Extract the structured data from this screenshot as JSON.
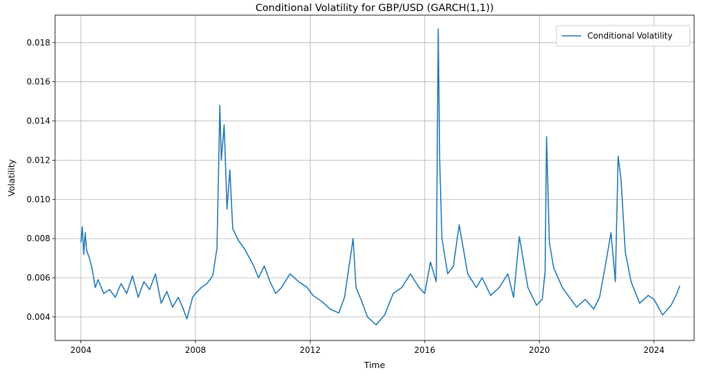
{
  "chart_data": {
    "type": "line",
    "title": "Conditional Volatility for GBP/USD (GARCH(1,1))",
    "xlabel": "Time",
    "ylabel": "Volatility",
    "xlim": [
      2003.1,
      2025.4
    ],
    "ylim": [
      0.0028,
      0.0194
    ],
    "x_ticks": [
      2004,
      2008,
      2012,
      2016,
      2020,
      2024
    ],
    "y_ticks": [
      0.004,
      0.006,
      0.008,
      0.01,
      0.012,
      0.014,
      0.016,
      0.018
    ],
    "y_tick_labels": [
      "0.004",
      "0.006",
      "0.008",
      "0.010",
      "0.012",
      "0.014",
      "0.016",
      "0.018"
    ],
    "grid": true,
    "legend_position": "top-right",
    "color": "#1f77b4",
    "series": [
      {
        "name": "Conditional Volatility",
        "x": [
          2004.0,
          2004.05,
          2004.1,
          2004.15,
          2004.2,
          2004.3,
          2004.4,
          2004.5,
          2004.6,
          2004.8,
          2005.0,
          2005.2,
          2005.4,
          2005.6,
          2005.8,
          2006.0,
          2006.2,
          2006.4,
          2006.6,
          2006.8,
          2007.0,
          2007.2,
          2007.4,
          2007.55,
          2007.7,
          2007.9,
          2008.0,
          2008.2,
          2008.4,
          2008.6,
          2008.75,
          2008.85,
          2008.9,
          2009.0,
          2009.1,
          2009.2,
          2009.3,
          2009.5,
          2009.7,
          2010.0,
          2010.2,
          2010.4,
          2010.6,
          2010.8,
          2011.0,
          2011.3,
          2011.6,
          2011.9,
          2012.1,
          2012.4,
          2012.7,
          2013.0,
          2013.2,
          2013.5,
          2013.6,
          2013.8,
          2014.0,
          2014.3,
          2014.6,
          2014.9,
          2015.2,
          2015.5,
          2015.8,
          2016.0,
          2016.2,
          2016.4,
          2016.47,
          2016.52,
          2016.6,
          2016.8,
          2017.0,
          2017.2,
          2017.5,
          2017.8,
          2018.0,
          2018.3,
          2018.6,
          2018.9,
          2019.1,
          2019.3,
          2019.6,
          2019.9,
          2020.1,
          2020.2,
          2020.25,
          2020.35,
          2020.5,
          2020.8,
          2021.0,
          2021.3,
          2021.6,
          2021.9,
          2022.1,
          2022.3,
          2022.5,
          2022.65,
          2022.75,
          2022.85,
          2023.0,
          2023.2,
          2023.5,
          2023.8,
          2024.0,
          2024.3,
          2024.6,
          2024.8,
          2024.9
        ],
        "values": [
          0.0078,
          0.0086,
          0.0072,
          0.0083,
          0.0074,
          0.007,
          0.0064,
          0.0055,
          0.0059,
          0.0052,
          0.0054,
          0.005,
          0.0057,
          0.0052,
          0.0061,
          0.005,
          0.0058,
          0.0054,
          0.0062,
          0.0047,
          0.0053,
          0.0045,
          0.005,
          0.0045,
          0.0039,
          0.005,
          0.0052,
          0.0055,
          0.0057,
          0.0061,
          0.0075,
          0.0148,
          0.012,
          0.0138,
          0.0095,
          0.0115,
          0.0085,
          0.0079,
          0.0075,
          0.0067,
          0.006,
          0.0066,
          0.0058,
          0.0052,
          0.0055,
          0.0062,
          0.0058,
          0.0055,
          0.0051,
          0.0048,
          0.0044,
          0.0042,
          0.005,
          0.008,
          0.0055,
          0.0048,
          0.004,
          0.0036,
          0.0041,
          0.0052,
          0.0055,
          0.0062,
          0.0055,
          0.0052,
          0.0068,
          0.0058,
          0.0187,
          0.012,
          0.008,
          0.0062,
          0.0066,
          0.0087,
          0.0062,
          0.0055,
          0.006,
          0.0051,
          0.0055,
          0.0062,
          0.005,
          0.0081,
          0.0055,
          0.0046,
          0.0049,
          0.0063,
          0.0132,
          0.0078,
          0.0065,
          0.0055,
          0.0051,
          0.0045,
          0.0049,
          0.0044,
          0.005,
          0.0066,
          0.0083,
          0.0058,
          0.0122,
          0.011,
          0.0073,
          0.0058,
          0.0047,
          0.0051,
          0.0049,
          0.0041,
          0.0046,
          0.0052,
          0.0056
        ]
      }
    ]
  }
}
